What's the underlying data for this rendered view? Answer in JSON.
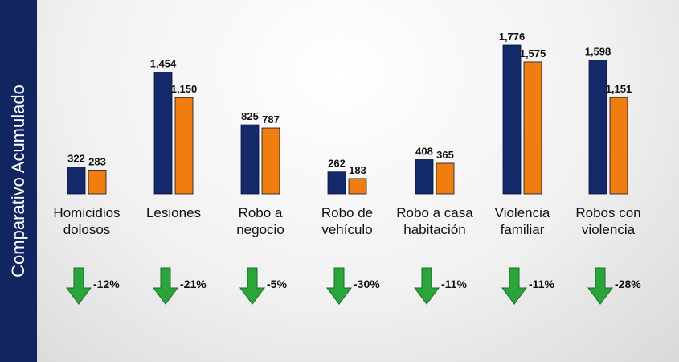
{
  "side_label": "Comparativo Acumulado",
  "chart_data": {
    "type": "bar",
    "categories": [
      [
        "Homicidios",
        "dolosos"
      ],
      [
        "Lesiones"
      ],
      [
        "Robo a",
        "negocio"
      ],
      [
        "Robo de",
        "vehículo"
      ],
      [
        "Robo a casa",
        "habitación"
      ],
      [
        "Violencia",
        "familiar"
      ],
      [
        "Robos con",
        "violencia"
      ]
    ],
    "series": [
      {
        "values": [
          322,
          1454,
          825,
          262,
          408,
          1776,
          1598
        ],
        "labels": [
          "322",
          "1,454",
          "825",
          "262",
          "408",
          "1,776",
          "1,598"
        ],
        "color": "#14296a"
      },
      {
        "values": [
          283,
          1150,
          787,
          183,
          365,
          1575,
          1151
        ],
        "labels": [
          "283",
          "1,150",
          "787",
          "183",
          "365",
          "1,575",
          "1,151"
        ],
        "color": "#ef7d10"
      }
    ],
    "changes": [
      "-12%",
      "-21%",
      "-5%",
      "-30%",
      "-11%",
      "-11%",
      "-28%"
    ],
    "arrow_color": "#2aa53c",
    "ylim": [
      0,
      1800
    ]
  }
}
